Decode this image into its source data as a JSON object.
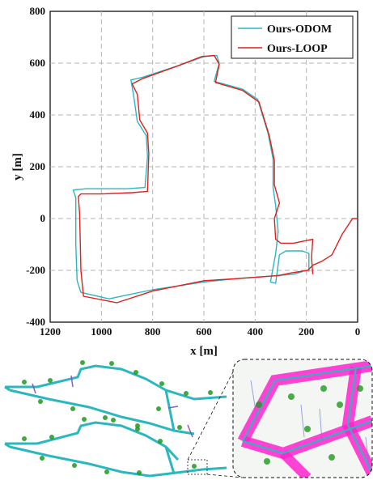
{
  "chart_data": {
    "type": "line",
    "xlabel": "x [m]",
    "ylabel": "y [m]",
    "xlim": [
      1200,
      0
    ],
    "ylim": [
      -400,
      800
    ],
    "x_ticks": [
      "1200",
      "1000",
      "800",
      "600",
      "400",
      "200",
      "0"
    ],
    "y_ticks": [
      "800",
      "600",
      "400",
      "200",
      "0",
      "-200",
      "-400"
    ],
    "x_tick_values": [
      1200,
      1000,
      800,
      600,
      400,
      200,
      0
    ],
    "y_tick_values": [
      800,
      600,
      400,
      200,
      0,
      -200,
      -400
    ],
    "grid": true,
    "legend_position": "top-right",
    "series": [
      {
        "name": "Ours-ODOM",
        "color": "#2ab7c0",
        "points": [
          [
            215,
            -205
          ],
          [
            250,
            -215
          ],
          [
            310,
            -220
          ],
          [
            450,
            -230
          ],
          [
            600,
            -245
          ],
          [
            700,
            -260
          ],
          [
            800,
            -275
          ],
          [
            900,
            -295
          ],
          [
            970,
            -310
          ],
          [
            1080,
            -285
          ],
          [
            1095,
            -240
          ],
          [
            1100,
            -100
          ],
          [
            1100,
            20
          ],
          [
            1100,
            80
          ],
          [
            1110,
            110
          ],
          [
            1060,
            115
          ],
          [
            1000,
            115
          ],
          [
            900,
            115
          ],
          [
            830,
            120
          ],
          [
            820,
            240
          ],
          [
            825,
            320
          ],
          [
            860,
            375
          ],
          [
            875,
            480
          ],
          [
            885,
            535
          ],
          [
            840,
            545
          ],
          [
            700,
            590
          ],
          [
            600,
            625
          ],
          [
            550,
            630
          ],
          [
            540,
            600
          ],
          [
            560,
            530
          ],
          [
            450,
            500
          ],
          [
            390,
            460
          ],
          [
            350,
            330
          ],
          [
            330,
            230
          ],
          [
            330,
            120
          ],
          [
            320,
            50
          ],
          [
            310,
            -50
          ],
          [
            320,
            -135
          ],
          [
            340,
            -245
          ],
          [
            320,
            -250
          ],
          [
            305,
            -140
          ],
          [
            280,
            -125
          ],
          [
            215,
            -125
          ],
          [
            190,
            -135
          ],
          [
            190,
            -205
          ]
        ]
      },
      {
        "name": "Ours-LOOP",
        "color": "#e0201b",
        "points": [
          [
            0,
            0
          ],
          [
            20,
            0
          ],
          [
            60,
            -60
          ],
          [
            100,
            -140
          ],
          [
            140,
            -165
          ],
          [
            175,
            -180
          ],
          [
            195,
            -200
          ],
          [
            260,
            -210
          ],
          [
            310,
            -220
          ],
          [
            440,
            -230
          ],
          [
            600,
            -240
          ],
          [
            700,
            -260
          ],
          [
            800,
            -280
          ],
          [
            940,
            -325
          ],
          [
            1070,
            -300
          ],
          [
            1080,
            -200
          ],
          [
            1085,
            20
          ],
          [
            1090,
            85
          ],
          [
            1080,
            95
          ],
          [
            1000,
            95
          ],
          [
            880,
            100
          ],
          [
            820,
            105
          ],
          [
            815,
            250
          ],
          [
            820,
            330
          ],
          [
            850,
            380
          ],
          [
            860,
            480
          ],
          [
            880,
            520
          ],
          [
            840,
            540
          ],
          [
            700,
            590
          ],
          [
            610,
            625
          ],
          [
            560,
            630
          ],
          [
            540,
            595
          ],
          [
            555,
            525
          ],
          [
            450,
            495
          ],
          [
            385,
            450
          ],
          [
            345,
            320
          ],
          [
            325,
            225
          ],
          [
            325,
            130
          ],
          [
            305,
            60
          ],
          [
            325,
            0
          ],
          [
            320,
            -80
          ],
          [
            300,
            -95
          ],
          [
            250,
            -95
          ],
          [
            200,
            -85
          ],
          [
            175,
            -80
          ],
          [
            180,
            -150
          ],
          [
            175,
            -215
          ]
        ]
      }
    ]
  },
  "inset": {
    "type": "3d point cloud maps",
    "colors": {
      "road": "#2ab7c0",
      "vegetation": "#1e9a1e",
      "highlight": "#ff22cc",
      "frame": "#111111"
    }
  }
}
